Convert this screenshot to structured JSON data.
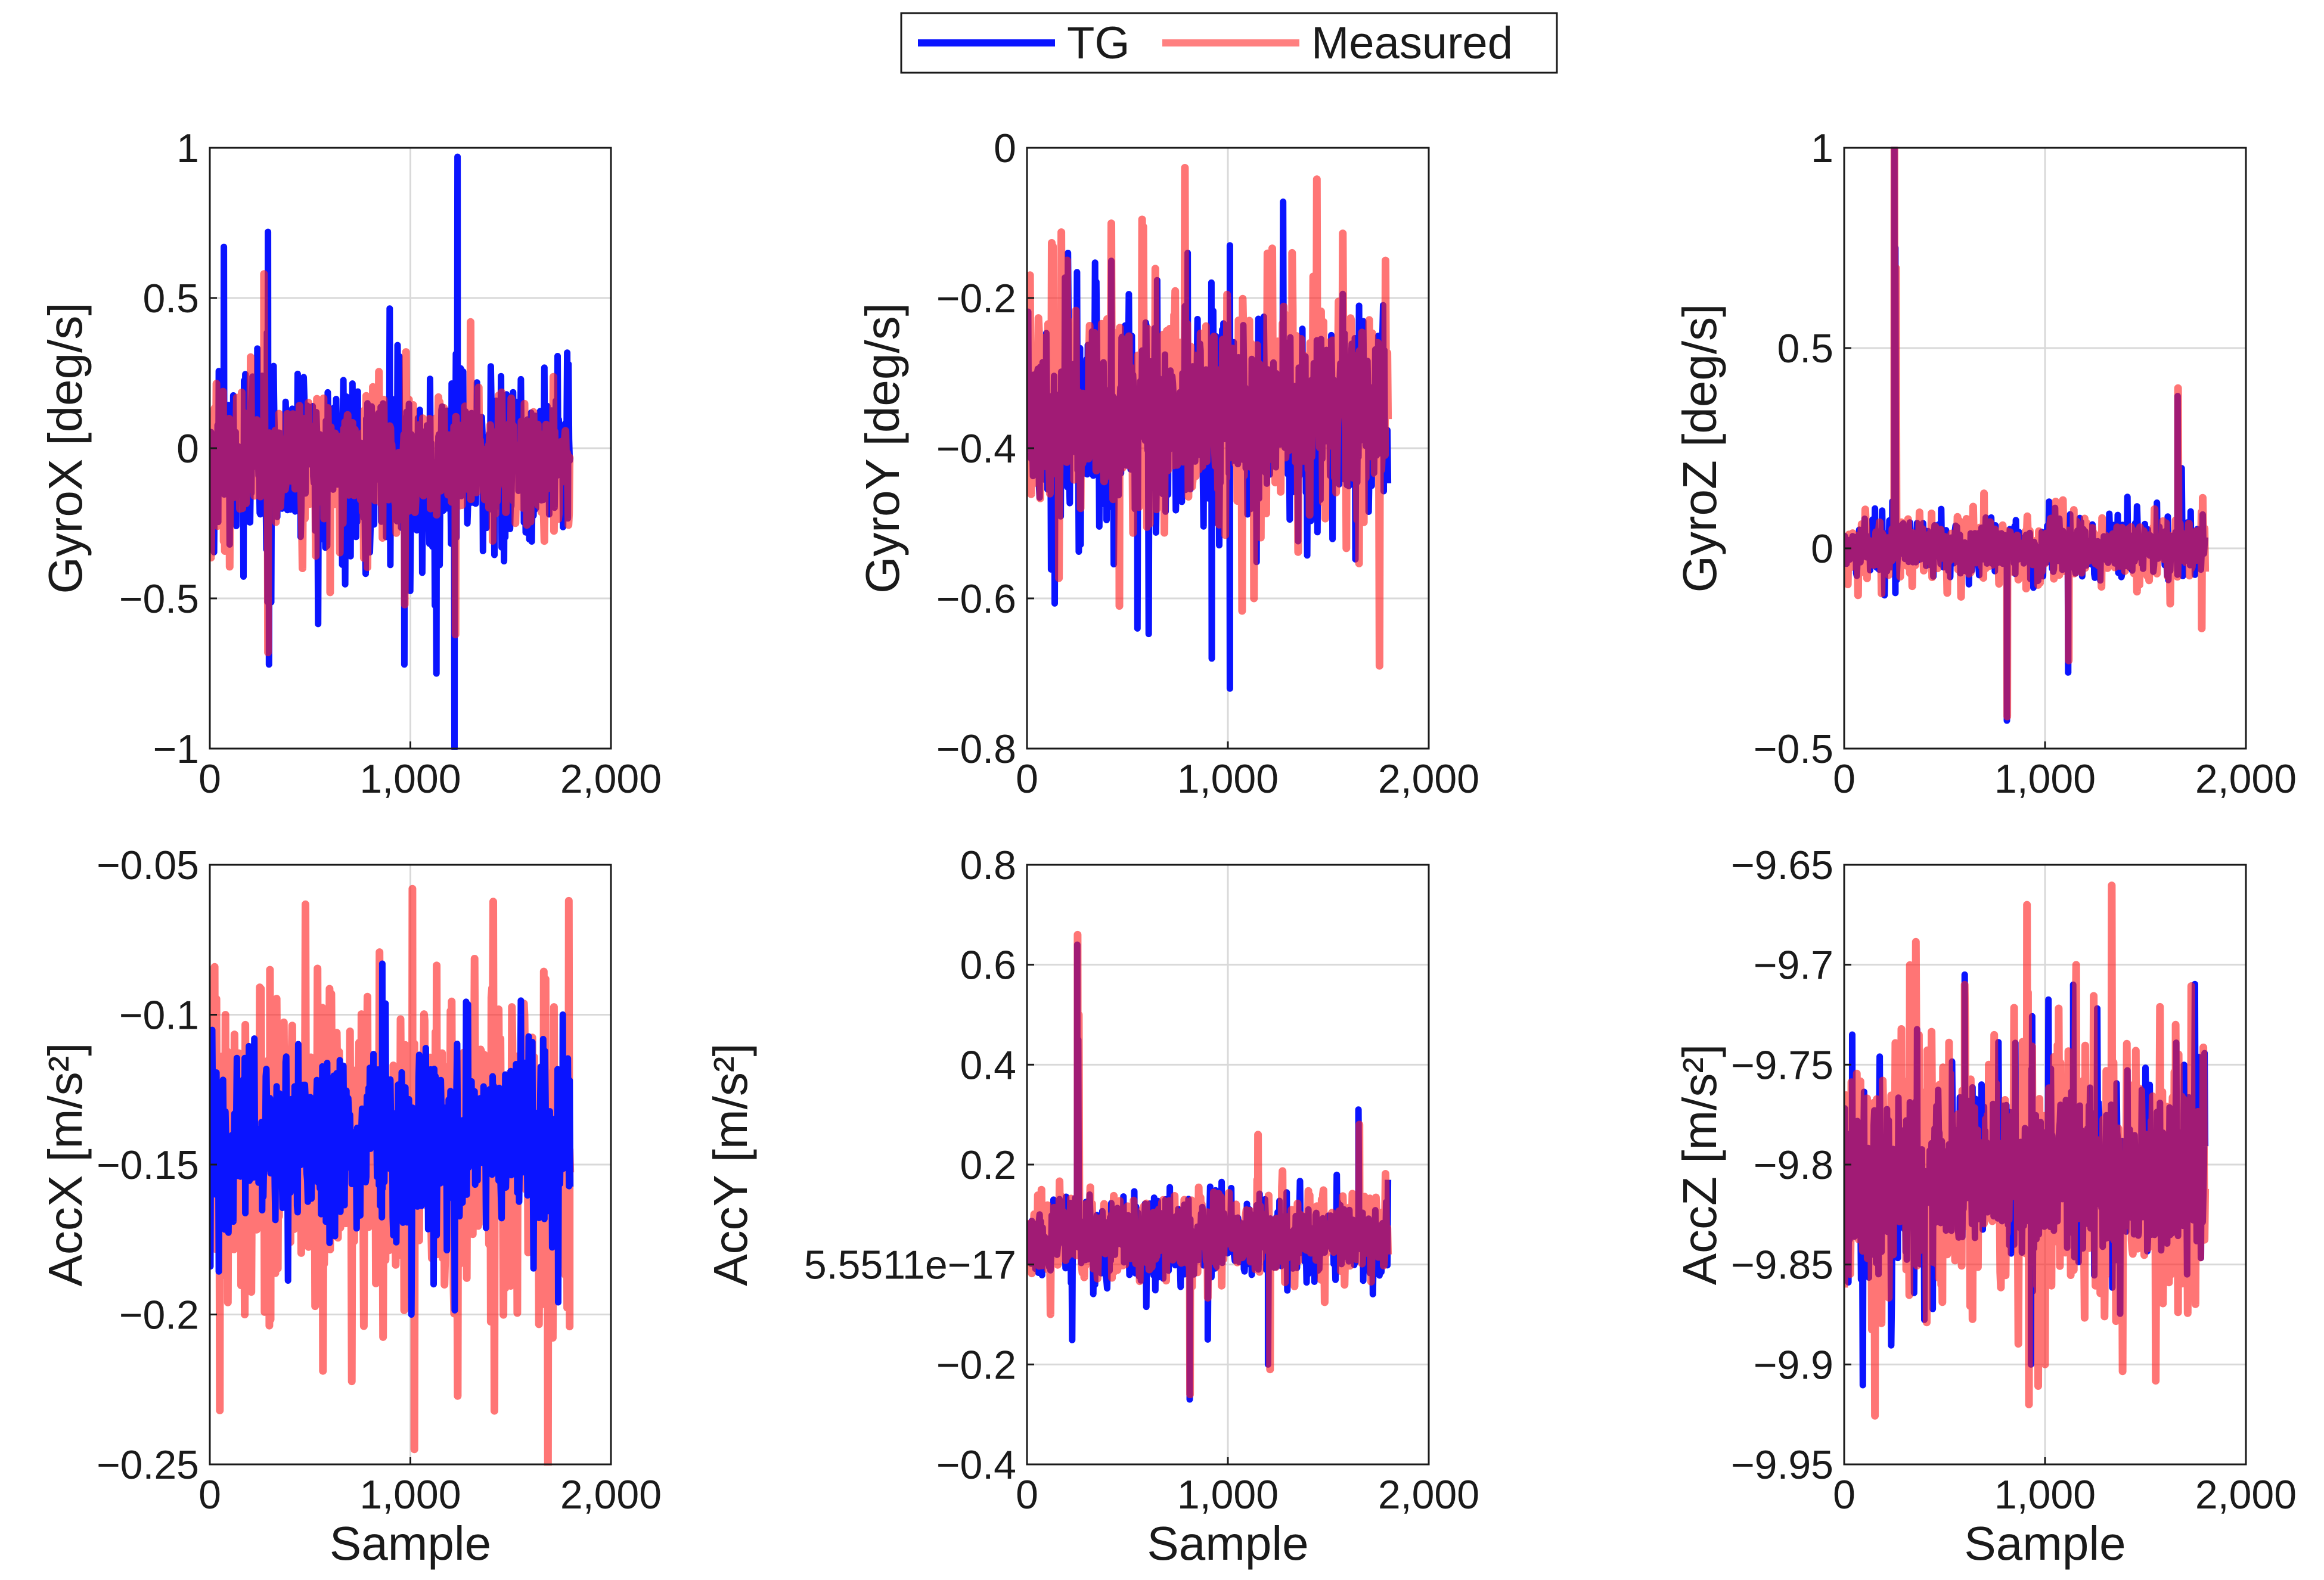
{
  "colors": {
    "tg": "#0a14ff",
    "measured": "#ff2020",
    "measured_legend": "#ff8080",
    "grid": "#d9d9d9",
    "axis": "#1a1a1a"
  },
  "legend": {
    "items": [
      {
        "label": "TG",
        "color": "#0a14ff"
      },
      {
        "label": "Measured",
        "color": "#ff8080"
      }
    ]
  },
  "chart_data": [
    {
      "type": "line",
      "ylabel": "GyroX [deg/s]",
      "xlabel": "",
      "xlim": [
        0,
        2000
      ],
      "ylim": [
        -1,
        1
      ],
      "xticks": [
        0,
        1000,
        2000
      ],
      "xtick_labels": [
        "0",
        "1,000",
        "2,000"
      ],
      "yticks": [
        -1,
        -0.5,
        0,
        0.5,
        1
      ],
      "ytick_labels": [
        "−1",
        "−0.5",
        "0",
        "0.5",
        "1"
      ],
      "series": [
        {
          "name": "TG",
          "n": 1800,
          "mean": -0.05,
          "amplitude": 0.24,
          "spikes": [
            [
              70,
              0.67
            ],
            [
              290,
              0.72
            ],
            [
              1235,
              0.97
            ],
            [
              1220,
              -1.0
            ],
            [
              1130,
              -0.75
            ],
            [
              295,
              -0.72
            ],
            [
              970,
              -0.72
            ]
          ]
        },
        {
          "name": "Measured",
          "n": 1800,
          "mean": -0.05,
          "amplitude": 0.17,
          "spikes": [
            [
              270,
              0.58
            ],
            [
              1300,
              0.42
            ],
            [
              290,
              -0.68
            ],
            [
              1225,
              -0.62
            ],
            [
              600,
              -0.48
            ]
          ]
        }
      ]
    },
    {
      "type": "line",
      "ylabel": "GyroY [deg/s]",
      "xlabel": "",
      "xlim": [
        0,
        2000
      ],
      "ylim": [
        -0.8,
        0
      ],
      "xticks": [
        0,
        1000,
        2000
      ],
      "xtick_labels": [
        "0",
        "1,000",
        "2,000"
      ],
      "yticks": [
        -0.8,
        -0.6,
        -0.4,
        -0.2,
        0
      ],
      "ytick_labels": [
        "−0.8",
        "−0.6",
        "−0.4",
        "−0.2",
        "0"
      ],
      "series": [
        {
          "name": "TG",
          "n": 1800,
          "mean": -0.36,
          "amplitude": 0.11,
          "spikes": [
            [
              1010,
              -0.72
            ],
            [
              920,
              -0.68
            ],
            [
              1010,
              -0.13
            ],
            [
              800,
              -0.14
            ],
            [
              550,
              -0.64
            ]
          ]
        },
        {
          "name": "Measured",
          "n": 1800,
          "mean": -0.35,
          "amplitude": 0.12,
          "spikes": [
            [
              1320,
              -0.14
            ],
            [
              460,
              -0.61
            ],
            [
              1130,
              -0.6
            ],
            [
              200,
              -0.15
            ]
          ]
        }
      ]
    },
    {
      "type": "line",
      "ylabel": "GyroZ [deg/s]",
      "xlabel": "",
      "xlim": [
        0,
        2000
      ],
      "ylim": [
        -0.5,
        1
      ],
      "xticks": [
        0,
        1000,
        2000
      ],
      "xtick_labels": [
        "0",
        "1,000",
        "2,000"
      ],
      "yticks": [
        -0.5,
        0,
        0.5,
        1
      ],
      "ytick_labels": [
        "−0.5",
        "0",
        "0.5",
        "1"
      ],
      "series": [
        {
          "name": "TG",
          "n": 1800,
          "mean": 0.0,
          "amplitude": 0.06,
          "spikes": [
            [
              250,
              1.0
            ],
            [
              255,
              0.75
            ],
            [
              810,
              -0.43
            ],
            [
              1115,
              -0.31
            ],
            [
              1660,
              0.38
            ],
            [
              1680,
              0.2
            ]
          ]
        },
        {
          "name": "Measured",
          "n": 1800,
          "mean": 0.0,
          "amplitude": 0.06,
          "spikes": [
            [
              250,
              1.0
            ],
            [
              258,
              0.7
            ],
            [
              812,
              -0.42
            ],
            [
              1118,
              -0.28
            ],
            [
              1662,
              0.4
            ],
            [
              1780,
              -0.2
            ]
          ]
        }
      ]
    },
    {
      "type": "line",
      "ylabel": "AccX [m/s²]",
      "xlabel": "Sample",
      "xlim": [
        0,
        2000
      ],
      "ylim": [
        -0.25,
        -0.05
      ],
      "xticks": [
        0,
        1000,
        2000
      ],
      "xtick_labels": [
        "0",
        "1,000",
        "2,000"
      ],
      "yticks": [
        -0.25,
        -0.2,
        -0.15,
        -0.1,
        -0.05
      ],
      "ytick_labels": [
        "−0.25",
        "−0.2",
        "−0.15",
        "−0.1",
        "−0.05"
      ],
      "series": [
        {
          "name": "Measured",
          "n": 1800,
          "mean": -0.145,
          "amplitude": 0.045,
          "spikes": [
            [
              1010,
              -0.058
            ],
            [
              1020,
              -0.245
            ],
            [
              1790,
              -0.062
            ],
            [
              50,
              -0.232
            ],
            [
              300,
              -0.085
            ]
          ]
        },
        {
          "name": "TG",
          "n": 1800,
          "mean": -0.142,
          "amplitude": 0.024,
          "spikes": [
            [
              860,
              -0.083
            ],
            [
              1005,
              -0.2
            ],
            [
              1760,
              -0.1
            ]
          ]
        }
      ]
    },
    {
      "type": "line",
      "ylabel": "AccY [m/s²]",
      "xlabel": "Sample",
      "xlim": [
        0,
        2000
      ],
      "ylim": [
        -0.4,
        0.8
      ],
      "xticks": [
        0,
        1000,
        2000
      ],
      "xtick_labels": [
        "0",
        "1,000",
        "2,000"
      ],
      "yticks": [
        -0.4,
        -0.2,
        0,
        0.2,
        0.4,
        0.6,
        0.8
      ],
      "ytick_labels": [
        "−0.4",
        "−0.2",
        "5.5511e−17",
        "0.2",
        "0.4",
        "0.6",
        "0.8"
      ],
      "series": [
        {
          "name": "TG",
          "n": 1800,
          "mean": 0.05,
          "amplitude": 0.07,
          "spikes": [
            [
              250,
              0.64
            ],
            [
              255,
              0.45
            ],
            [
              810,
              -0.27
            ],
            [
              1200,
              -0.2
            ],
            [
              1650,
              0.31
            ],
            [
              900,
              -0.15
            ]
          ]
        },
        {
          "name": "Measured",
          "n": 1800,
          "mean": 0.06,
          "amplitude": 0.07,
          "spikes": [
            [
              252,
              0.66
            ],
            [
              258,
              0.5
            ],
            [
              812,
              -0.26
            ],
            [
              1210,
              -0.21
            ],
            [
              1655,
              0.28
            ],
            [
              1150,
              0.26
            ]
          ]
        }
      ]
    },
    {
      "type": "line",
      "ylabel": "AccZ [m/s²]",
      "xlabel": "Sample",
      "xlim": [
        0,
        2000
      ],
      "ylim": [
        -9.95,
        -9.65
      ],
      "xticks": [
        0,
        1000,
        2000
      ],
      "xtick_labels": [
        "0",
        "1,000",
        "2,000"
      ],
      "yticks": [
        -9.95,
        -9.9,
        -9.85,
        -9.8,
        -9.75,
        -9.7,
        -9.65
      ],
      "ytick_labels": [
        "−9.95",
        "−9.9",
        "−9.85",
        "−9.8",
        "−9.75",
        "−9.7",
        "−9.65"
      ],
      "series": [
        {
          "name": "TG",
          "n": 1800,
          "mean": -9.805,
          "amplitude": 0.04,
          "spikes": [
            [
              600,
              -9.705
            ],
            [
              40,
              -9.735
            ],
            [
              930,
              -9.9
            ],
            [
              1140,
              -9.71
            ]
          ]
        },
        {
          "name": "Measured",
          "n": 1800,
          "mean": -9.805,
          "amplitude": 0.052,
          "spikes": [
            [
              910,
              -9.67
            ],
            [
              920,
              -9.92
            ],
            [
              1000,
              -9.9
            ],
            [
              600,
              -9.71
            ],
            [
              1650,
              -9.73
            ]
          ]
        }
      ]
    }
  ]
}
